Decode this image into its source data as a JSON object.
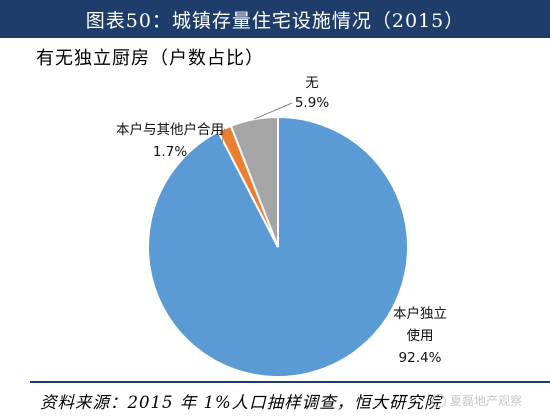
{
  "header": {
    "title": "图表50：城镇存量住宅设施情况（2015）"
  },
  "chart_data": {
    "type": "pie",
    "title": "有无独立厨房（户数占比）",
    "slices": [
      {
        "name_lines": [
          "本户独立",
          "使用"
        ],
        "value": 92.4,
        "label": "92.4%",
        "color": "#5b9bd5"
      },
      {
        "name_lines": [
          "本户与其他户合用"
        ],
        "value": 1.7,
        "label": "1.7%",
        "color": "#ed7d31"
      },
      {
        "name_lines": [
          "无"
        ],
        "value": 5.9,
        "label": "5.9%",
        "color": "#a5a5a5"
      }
    ],
    "legend": "none"
  },
  "footer": {
    "source": "资料来源：2015 年 1%人口抽样调查，恒大研究院",
    "watermark": "夏磊地产观察"
  }
}
